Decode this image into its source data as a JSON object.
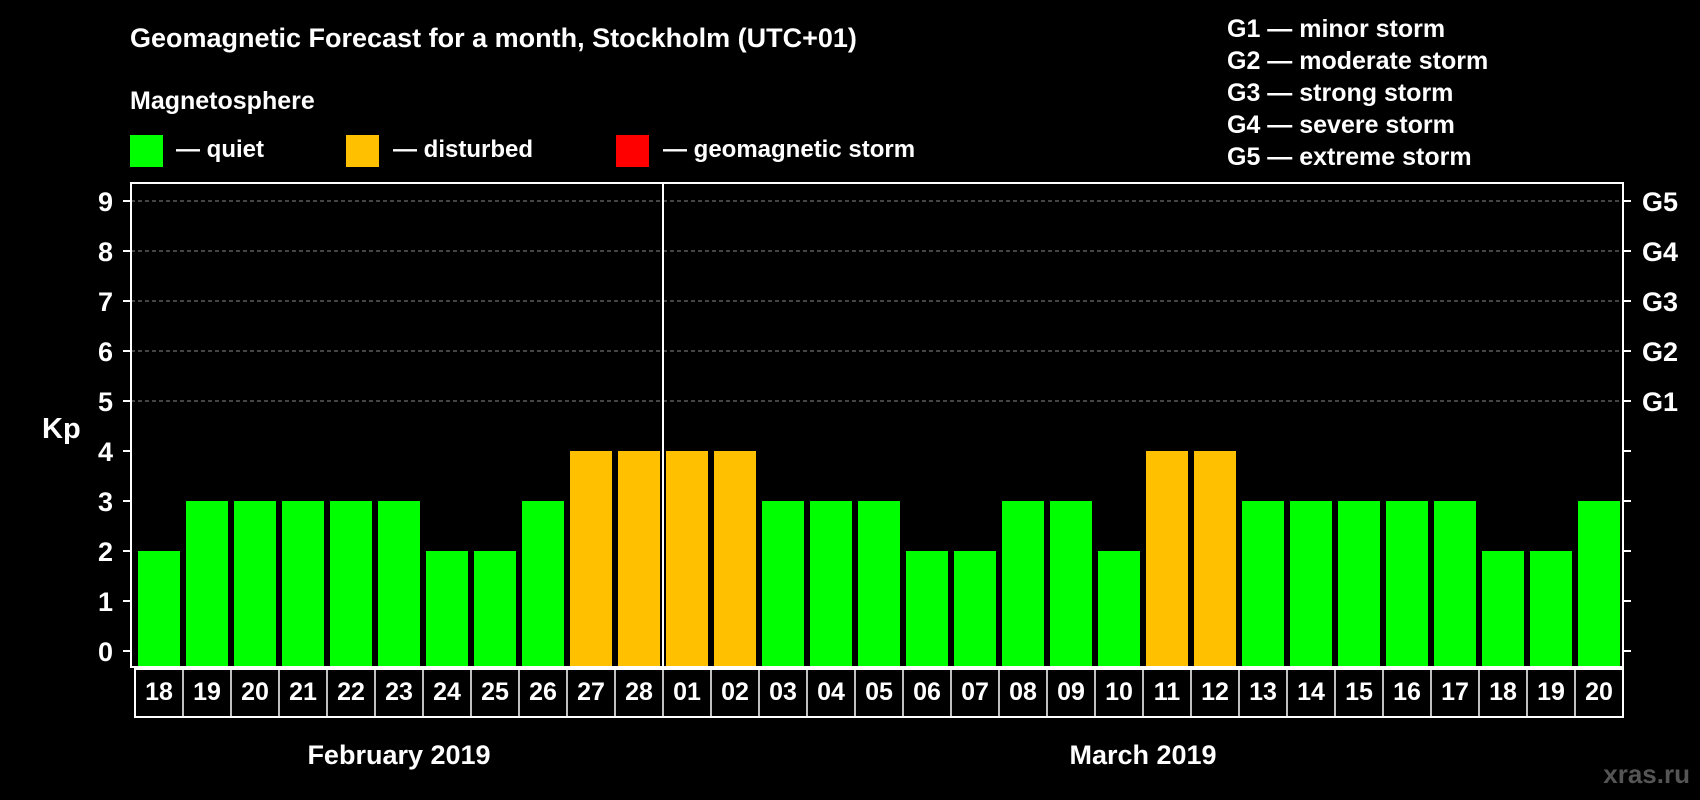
{
  "chart_data": {
    "type": "bar",
    "title": "Geomagnetic Forecast for a month, Stockholm (UTC+01)",
    "legend": {
      "heading": "Magnetosphere",
      "items": [
        {
          "label": "— quiet",
          "color": "#00ff00"
        },
        {
          "label": "— disturbed",
          "color": "#ffc000"
        },
        {
          "label": "— geomagnetic storm",
          "color": "#ff0000"
        }
      ]
    },
    "storm_scale": [
      "G1 — minor storm",
      "G2 — moderate storm",
      "G3 — strong storm",
      "G4 — severe storm",
      "G5 — extreme storm"
    ],
    "ylabel": "Kp",
    "ylim": [
      0,
      9
    ],
    "yticks": [
      "0",
      "1",
      "2",
      "3",
      "4",
      "5",
      "6",
      "7",
      "8",
      "9"
    ],
    "right_axis_labels": [
      {
        "value": 5,
        "label": "G1"
      },
      {
        "value": 6,
        "label": "G2"
      },
      {
        "value": 7,
        "label": "G3"
      },
      {
        "value": 8,
        "label": "G4"
      },
      {
        "value": 9,
        "label": "G5"
      }
    ],
    "categories": [
      "18",
      "19",
      "20",
      "21",
      "22",
      "23",
      "24",
      "25",
      "26",
      "27",
      "28",
      "01",
      "02",
      "03",
      "04",
      "05",
      "06",
      "07",
      "08",
      "09",
      "10",
      "11",
      "12",
      "13",
      "14",
      "15",
      "16",
      "17",
      "18",
      "19",
      "20"
    ],
    "values": [
      2,
      3,
      3,
      3,
      3,
      3,
      2,
      2,
      3,
      4,
      4,
      4,
      4,
      3,
      3,
      3,
      2,
      2,
      3,
      3,
      2,
      4,
      4,
      3,
      3,
      3,
      3,
      3,
      2,
      2,
      3
    ],
    "colors": {
      "quiet": "#00ff00",
      "disturbed": "#ffc000",
      "storm": "#ff0000"
    },
    "months": [
      {
        "label": "February 2019",
        "start_index": 0,
        "end_index": 10
      },
      {
        "label": "March 2019",
        "start_index": 11,
        "end_index": 30
      }
    ],
    "month_divider_after_index": 10
  },
  "watermark": "xras.ru"
}
